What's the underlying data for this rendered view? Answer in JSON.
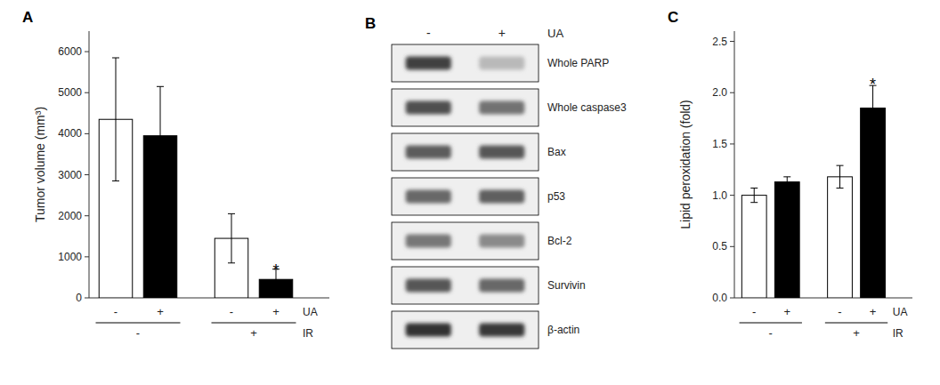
{
  "chart_data": [
    {
      "type": "bar",
      "title": "A",
      "categories": [
        "-",
        "+",
        "-",
        "+"
      ],
      "category_label": "UA",
      "groups": [
        "-",
        "-",
        "+",
        "+"
      ],
      "group_label": "IR",
      "values": [
        4350,
        3950,
        1450,
        450
      ],
      "errors": [
        1500,
        1200,
        600,
        250
      ],
      "colors": [
        "white",
        "black",
        "white",
        "black"
      ],
      "annotations": [
        {
          "text": "*",
          "index": 3,
          "y": 720
        }
      ],
      "ylabel": "Tumor volume (mm³)",
      "ylim": [
        0,
        6500
      ],
      "yticks": [
        0,
        1000,
        2000,
        3000,
        4000,
        5000,
        6000
      ],
      "grid": false
    },
    {
      "type": "blot",
      "title": "B",
      "categories": [
        "Whole PARP",
        "Whole caspase3",
        "Bax",
        "p53",
        "Bcl-2",
        "Survivin",
        "β-actin"
      ],
      "series_label": "UA",
      "series": [
        {
          "name": "-",
          "values": [
            0.82,
            0.75,
            0.7,
            0.65,
            0.58,
            0.72,
            0.88
          ]
        },
        {
          "name": "+",
          "values": [
            0.3,
            0.6,
            0.72,
            0.68,
            0.5,
            0.65,
            0.85
          ]
        }
      ]
    },
    {
      "type": "bar",
      "title": "C",
      "categories": [
        "-",
        "+",
        "-",
        "+"
      ],
      "category_label": "UA",
      "groups": [
        "-",
        "-",
        "+",
        "+"
      ],
      "group_label": "IR",
      "values": [
        1.0,
        1.13,
        1.18,
        1.85
      ],
      "errors": [
        0.07,
        0.05,
        0.11,
        0.22
      ],
      "colors": [
        "white",
        "black",
        "white",
        "black"
      ],
      "annotations": [
        {
          "text": "*",
          "index": 3,
          "y": 2.1
        }
      ],
      "ylabel": "Lipid peroxidation (fold)",
      "ylim": [
        0,
        2.6
      ],
      "yticks": [
        {
          "value": 0,
          "label": "0.0"
        },
        0.5,
        {
          "value": 1.0,
          "label": "1.0"
        },
        1.5,
        {
          "value": 2.0,
          "label": "2.0"
        },
        2.5
      ],
      "grid": false
    }
  ]
}
